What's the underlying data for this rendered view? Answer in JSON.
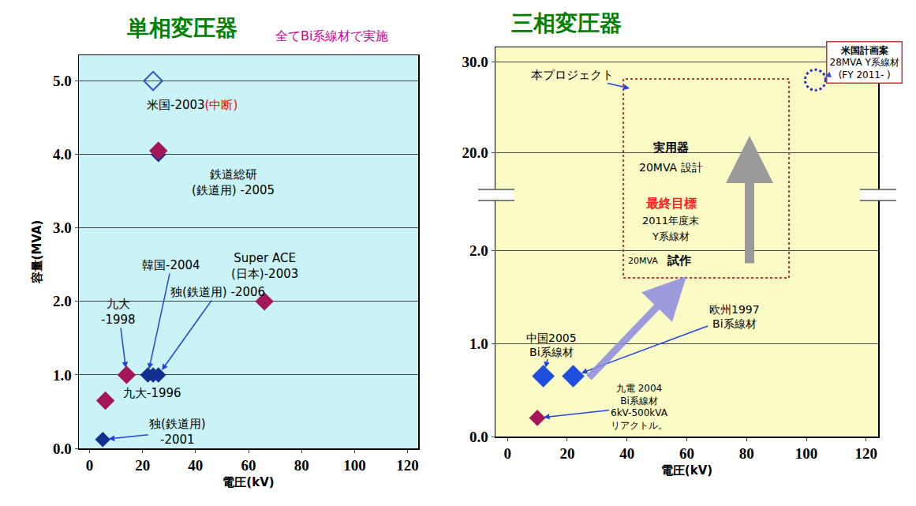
{
  "chart_data": [
    {
      "type": "scatter",
      "title": "単相変圧器",
      "x_label": "電圧(kV)",
      "y_label": "容量(MVA)",
      "xlim": [
        -4,
        124
      ],
      "xticks": [
        0,
        20,
        40,
        60,
        80,
        100,
        120
      ],
      "ylim": [
        0,
        5.35
      ],
      "yticks": [
        {
          "value": 0,
          "label": "0.0"
        },
        {
          "value": 1,
          "label": "1.0"
        },
        {
          "value": 2,
          "label": "2.0"
        },
        {
          "value": 3,
          "label": "3.0"
        },
        {
          "value": 4,
          "label": "4.0"
        },
        {
          "value": 5,
          "label": "5.0"
        }
      ],
      "grid": true,
      "annotations": [
        "全てBi系線材で実施"
      ],
      "series": [
        {
          "marker": "diamond-open",
          "color": "#3355cc",
          "x": [
            24
          ],
          "values": [
            5.0
          ],
          "labels": [
            "米国-2003"
          ],
          "notes": [
            "(中断)"
          ]
        },
        {
          "marker": "diamond",
          "color": "#12308f",
          "x": [
            26,
            22,
            24,
            26,
            5
          ],
          "values": [
            4.0,
            1.0,
            1.0,
            1.0,
            0.12
          ],
          "labels": [
            null,
            "韓国-2004",
            null,
            "独(鉄道用) -2006",
            "独(鉄道用)\n-2001"
          ]
        },
        {
          "marker": "diamond",
          "color": "#a3175a",
          "x": [
            26,
            66,
            14,
            6
          ],
          "values": [
            4.05,
            2.0,
            1.0,
            0.65
          ],
          "labels": [
            "鉄道総研\n(鉄道用) -2005",
            "Super ACE\n(日本)-2003",
            "九大\n-1998",
            "九大-1996"
          ]
        }
      ]
    },
    {
      "type": "scatter",
      "title": "三相変圧器",
      "tick_labels": "y",
      "xlim": [
        -4,
        124
      ],
      "ylim": [
        15.3,
        31.6
      ],
      "yticks": [
        {
          "value": 20,
          "label": "20.0"
        },
        {
          "value": 30,
          "label": "30.0"
        }
      ],
      "grid": true,
      "annotations": [
        "本プロジェクト",
        "実用器",
        "20MVA 設計",
        "最終目標",
        "2011年度末",
        "Y系線材"
      ],
      "series": [
        {
          "marker": "dotted_circle",
          "color": "#2233cc",
          "x": [
            103
          ],
          "values": [
            28
          ],
          "labels": [
            "米国計画案\n28MVA Y系線材\n(FY 2011- )"
          ]
        }
      ]
    },
    {
      "type": "scatter",
      "x_label": "電圧(kV)",
      "xlim": [
        -4,
        124
      ],
      "xticks": [
        0,
        20,
        40,
        60,
        80,
        100,
        120
      ],
      "ylim": [
        0,
        2.6
      ],
      "yticks": [
        {
          "value": 0,
          "label": "0.0"
        },
        {
          "value": 1,
          "label": "1.0"
        },
        {
          "value": 2,
          "label": "2.0"
        }
      ],
      "grid": true,
      "annotations": [
        "20MVA",
        "試作"
      ],
      "series": [
        {
          "marker": "diamond",
          "color": "#1f4fdd",
          "x": [
            12,
            22
          ],
          "values": [
            0.65,
            0.65
          ],
          "labels": [
            "中国2005\nBi系線材",
            "欧州1997\nBi系線材"
          ]
        },
        {
          "marker": "diamond",
          "color": "#a3175a",
          "x": [
            10
          ],
          "values": [
            0.2
          ],
          "labels": [
            "九電 2004\nBi系線材\n6kV-500kVA\nリアクトル。"
          ]
        }
      ]
    }
  ]
}
